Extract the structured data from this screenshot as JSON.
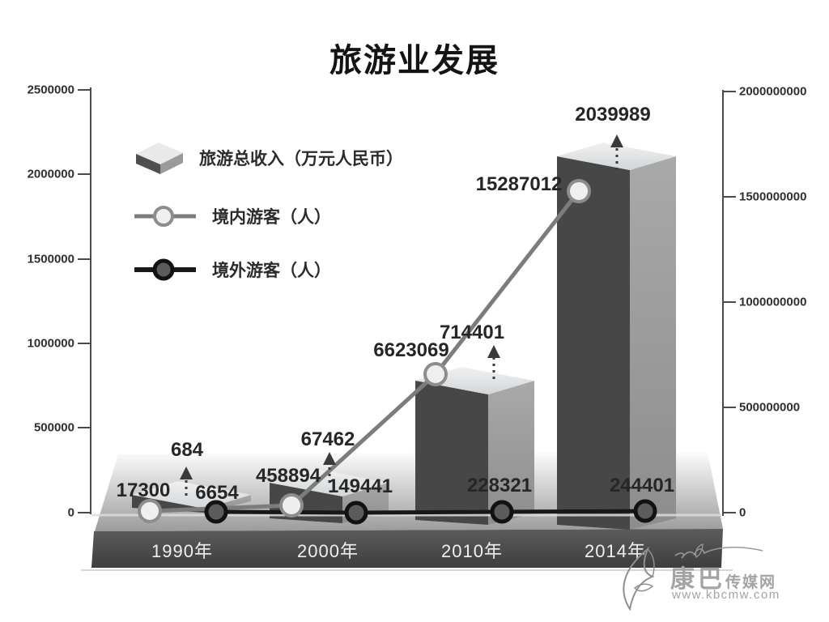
{
  "header": {
    "title": "旅游业发展"
  },
  "legend": {
    "items": [
      {
        "id": "revenue",
        "label": "旅游总收入（万元人民币）"
      },
      {
        "id": "domestic",
        "label": "境内游客（人）"
      },
      {
        "id": "foreign",
        "label": "境外游客（人）"
      }
    ]
  },
  "chart_data": {
    "type": "bar",
    "subtype": "3d-bar-plus-line-combo",
    "title": "旅游业发展",
    "categories": [
      "1990年",
      "2000年",
      "2010年",
      "2014年"
    ],
    "series": [
      {
        "name": "旅游总收入（万元人民币）",
        "type": "bar",
        "axis": "left",
        "values": [
          684,
          67462,
          714401,
          2039989
        ]
      },
      {
        "name": "境内游客（人）",
        "type": "line",
        "axis": "right",
        "values": [
          17300,
          458894,
          6623069,
          15287012
        ]
      },
      {
        "name": "境外游客（人）",
        "type": "line",
        "axis": "right",
        "values": [
          6654,
          149441,
          228321,
          244401
        ]
      }
    ],
    "left_axis": {
      "labels": [
        "2500000",
        "2000000",
        "1500000",
        "1000000",
        "500000",
        "0"
      ],
      "range": [
        0,
        2500000
      ]
    },
    "right_axis": {
      "labels": [
        "2000000000",
        "1500000000",
        "1000000000",
        "500000000",
        "0"
      ],
      "range": [
        0,
        2000000000
      ]
    },
    "grid": false,
    "legend_position": "upper-left"
  },
  "colors": {
    "bar_front": "#474747",
    "bar_side_light": "#a9a9a9",
    "bar_side_dark": "#8d8d8d",
    "bar_top_light": "#f0f1f2",
    "bar_top_dark": "#d2d6d8",
    "line_domestic": "#7c7c7c",
    "line_foreign": "#181818",
    "marker_domestic_fill": "#efefef",
    "marker_domestic_ring": "#8d8d8d",
    "marker_foreign_fill": "#5c5c5c",
    "marker_foreign_ring": "#121212",
    "axis": "#4a4a4a",
    "floor_light": "#fcfcfc",
    "floor_dark": "#9c9c9c",
    "band_light": "#5c5c5c",
    "band_dark": "#3e3e3e",
    "arrow": "#3a3a3a",
    "label": "#262626"
  },
  "watermark": {
    "site_name_main": "康巴",
    "site_name_suffix": "传媒网",
    "site_url": "www.kbcmw.com"
  }
}
